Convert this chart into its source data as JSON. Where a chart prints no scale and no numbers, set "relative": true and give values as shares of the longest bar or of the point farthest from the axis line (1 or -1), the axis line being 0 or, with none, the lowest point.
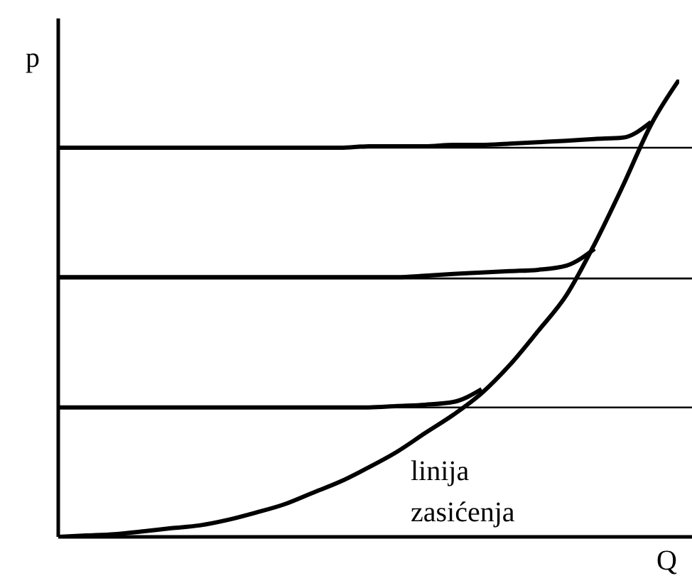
{
  "chart_data": {
    "type": "line",
    "relative": true,
    "xlabel": "Q",
    "ylabel": "p",
    "categories": [
      null,
      null,
      null,
      null,
      null,
      null,
      null,
      null,
      null,
      null,
      null,
      null,
      null,
      null,
      null,
      null,
      null,
      null,
      null,
      null,
      null,
      null,
      null
    ],
    "series": [
      {
        "color": "#000000",
        "values": [
          0,
          0.003,
          0.006,
          0.012,
          0.019,
          0.025,
          0.037,
          0.053,
          0.071,
          0.096,
          0.121,
          0.152,
          0.186,
          0.227,
          0.267,
          0.314,
          0.376,
          0.45,
          0.528,
          0.64,
          0.767,
          0.901,
          1
        ]
      },
      {
        "color": "#000000",
        "values": [
          0.851,
          0.851,
          0.851,
          0.851,
          0.851,
          0.851,
          0.851,
          0.851,
          0.851,
          0.851,
          0.851,
          0.854,
          0.854,
          0.854,
          0.857,
          0.857,
          0.86,
          0.863,
          0.866,
          0.87,
          0.873,
          0.907,
          null
        ]
      },
      {
        "color": "#000000",
        "values": [
          0.568,
          0.568,
          0.568,
          0.568,
          0.568,
          0.568,
          0.568,
          0.568,
          0.568,
          0.568,
          0.568,
          0.568,
          0.568,
          0.571,
          0.575,
          0.578,
          0.581,
          0.584,
          0.593,
          0.63,
          null,
          null,
          null
        ]
      },
      {
        "color": "#000000",
        "values": [
          0.283,
          0.283,
          0.283,
          0.283,
          0.283,
          0.283,
          0.283,
          0.283,
          0.283,
          0.283,
          0.283,
          0.283,
          0.286,
          0.289,
          0.295,
          0.323,
          null,
          null,
          null,
          null,
          null,
          null,
          null
        ]
      }
    ],
    "ref_lines": [
      {
        "axis": "y",
        "value": 0.851,
        "color": "#000000"
      },
      {
        "axis": "y",
        "value": 0.565,
        "color": "#000000"
      },
      {
        "axis": "y",
        "value": 0.283,
        "color": "#000000"
      }
    ],
    "annotations": [
      "linija zasićenja"
    ],
    "grid": false,
    "legend": false,
    "marker": "none",
    "line_style": "solid"
  }
}
